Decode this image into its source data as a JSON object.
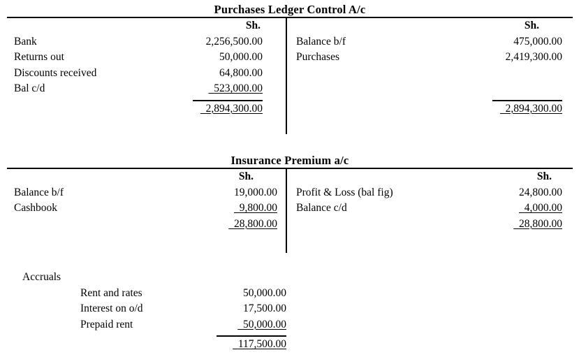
{
  "accounts": [
    {
      "title": "Purchases Ledger Control A/c",
      "currency_header": "Sh.",
      "debit": {
        "rows": [
          {
            "label": "Bank",
            "amount": "2,256,500.00"
          },
          {
            "label": "Returns out",
            "amount": "50,000.00"
          },
          {
            "label": "Discounts received",
            "amount": "64,800.00"
          },
          {
            "label": "Bal c/d",
            "amount": "523,000.00"
          }
        ],
        "total": "2,894,300.00"
      },
      "credit": {
        "rows": [
          {
            "label": "Balance b/f",
            "amount": "475,000.00"
          },
          {
            "label": "Purchases",
            "amount": "2,419,300.00"
          }
        ],
        "total": "2,894,300.00"
      }
    },
    {
      "title": "Insurance Premium a/c",
      "currency_header": "Sh.",
      "debit": {
        "rows": [
          {
            "label": "Balance b/f",
            "amount": "19,000.00"
          },
          {
            "label": "Cashbook",
            "amount": "9,800.00"
          }
        ],
        "total": "28,800.00"
      },
      "credit": {
        "rows": [
          {
            "label": "Profit & Loss (bal fig)",
            "amount": "24,800.00"
          },
          {
            "label": "Balance c/d",
            "amount": "4,000.00"
          }
        ],
        "total": "28,800.00"
      }
    }
  ],
  "accruals": {
    "heading": "Accruals",
    "rows": [
      {
        "label": "Rent and rates",
        "amount": "50,000.00"
      },
      {
        "label": "Interest on o/d",
        "amount": "17,500.00"
      },
      {
        "label": "Prepaid rent",
        "amount": "50,000.00"
      }
    ],
    "total": "117,500.00"
  }
}
